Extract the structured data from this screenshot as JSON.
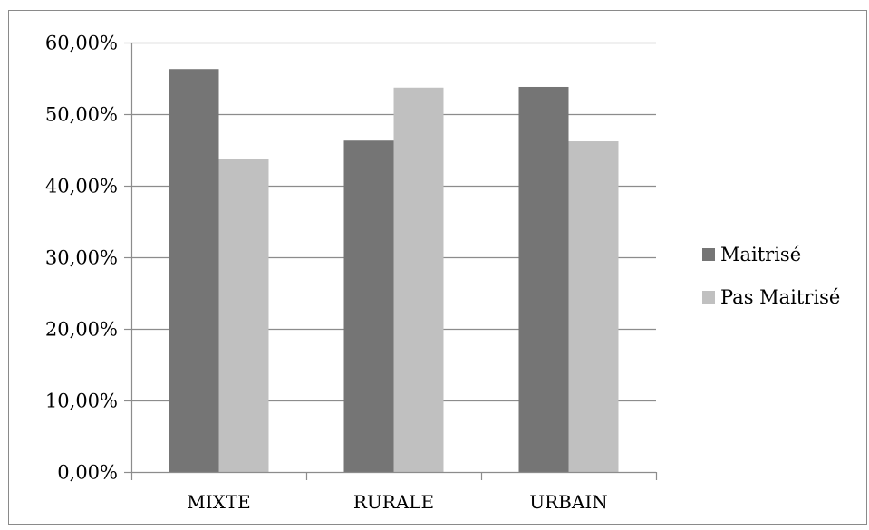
{
  "chart_data": {
    "type": "bar",
    "categories": [
      "MIXTE",
      "RURALE",
      "URBAIN"
    ],
    "series": [
      {
        "name": "Maitrisé",
        "values": [
          56.3,
          46.3,
          53.8
        ],
        "color": "#757575"
      },
      {
        "name": "Pas Maitrisé",
        "values": [
          43.7,
          53.7,
          46.2
        ],
        "color": "#c0c0c0"
      }
    ],
    "ylim": [
      0,
      60
    ],
    "yticks": [
      0,
      10,
      20,
      30,
      40,
      50,
      60
    ],
    "ytick_labels": [
      "0,00%",
      "10,00%",
      "20,00%",
      "30,00%",
      "40,00%",
      "50,00%",
      "60,00%"
    ],
    "grid": true,
    "legend_position": "right",
    "title": "",
    "xlabel": "",
    "ylabel": ""
  }
}
